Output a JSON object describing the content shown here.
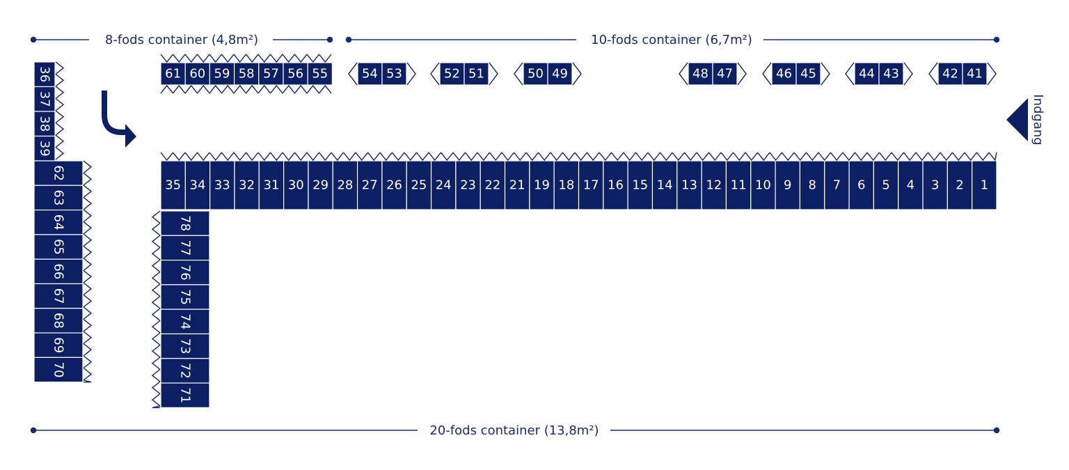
{
  "colors": {
    "navy": "#0c1f63",
    "label": "#1a2a6c",
    "background": "#ffffff"
  },
  "legend": {
    "small": "8-fods container (4,8m²)",
    "medium": "10-fods container (6,7m²)",
    "large": "20-fods container (13,8m²)"
  },
  "entrance": {
    "label": "Indgang",
    "icon": "entrance-arrow-icon"
  },
  "turn_arrow": {
    "icon": "u-turn-arrow-icon"
  },
  "groups": {
    "top_small": [
      "61",
      "60",
      "59",
      "58",
      "57",
      "56",
      "55"
    ],
    "top_medium_pairs": [
      [
        "54",
        "53"
      ],
      [
        "52",
        "51"
      ],
      [
        "50",
        "49"
      ],
      [
        "48",
        "47"
      ],
      [
        "46",
        "45"
      ],
      [
        "44",
        "43"
      ],
      [
        "42",
        "41"
      ]
    ],
    "left_small_column": [
      "36",
      "37",
      "38",
      "39"
    ],
    "main_row": [
      "35",
      "34",
      "33",
      "32",
      "31",
      "30",
      "29",
      "28",
      "27",
      "26",
      "25",
      "24",
      "23",
      "22",
      "21",
      "19",
      "18",
      "17",
      "16",
      "15",
      "14",
      "13",
      "12",
      "11",
      "10",
      "9",
      "8",
      "7",
      "6",
      "5",
      "4",
      "3",
      "2",
      "1"
    ],
    "left_large_column": [
      "62",
      "63",
      "64",
      "65",
      "66",
      "67",
      "68",
      "69",
      "70"
    ],
    "inner_large_column": [
      "78",
      "77",
      "76",
      "75",
      "74",
      "73",
      "72",
      "71"
    ]
  }
}
